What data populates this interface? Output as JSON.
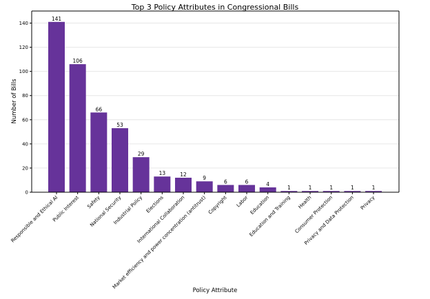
{
  "chart_data": {
    "type": "bar",
    "title": "Top 3 Policy Attributes in Congressional Bills",
    "xlabel": "Policy Attribute",
    "ylabel": "Number of Bills",
    "ylim": [
      0,
      150
    ],
    "yticks": [
      0,
      20,
      40,
      60,
      80,
      100,
      120,
      140
    ],
    "grid": "horizontal",
    "bar_color": "#66339a",
    "categories": [
      "Responsible and Ethical AI",
      "Public Interest",
      "Safety",
      "National Security",
      "Industrial Policy",
      "Elections",
      "International Collaboration",
      "Market efficiency and power concentration (antitrust)",
      "Copyright",
      "Labor",
      "Education",
      "Education and Training",
      "Health",
      "Consumer Protection",
      "Privacy and Data Protection",
      "Privacy"
    ],
    "values": [
      141,
      106,
      66,
      53,
      29,
      13,
      12,
      9,
      6,
      6,
      4,
      1,
      1,
      1,
      1,
      1
    ]
  }
}
